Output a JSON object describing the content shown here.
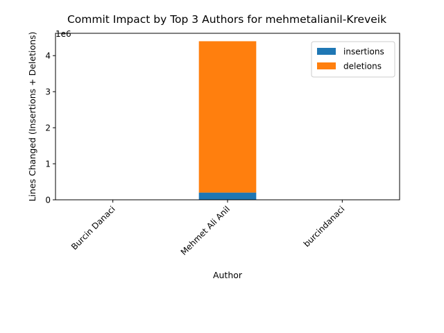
{
  "chart_data": {
    "type": "bar",
    "stacked": true,
    "title": "Commit Impact by Top 3 Authors for mehmetalianil-Kreveik",
    "xlabel": "Author",
    "ylabel": "Lines Changed (Insertions + Deletions)",
    "y_offset_label": "1e6",
    "categories": [
      "Burcin Danaci",
      "Mehmet Ali Anil",
      "burcindanaci"
    ],
    "series": [
      {
        "name": "insertions",
        "color": "#1f77b4",
        "values": [
          0,
          200000,
          0
        ]
      },
      {
        "name": "deletions",
        "color": "#ff7f0e",
        "values": [
          0,
          4200000,
          0
        ]
      }
    ],
    "y_ticks": [
      0,
      1000000,
      2000000,
      3000000,
      4000000
    ],
    "y_tick_labels": [
      "0",
      "1",
      "2",
      "3",
      "4"
    ],
    "ylim": [
      0,
      4620000
    ],
    "legend_position": "top-right",
    "grid": false
  }
}
